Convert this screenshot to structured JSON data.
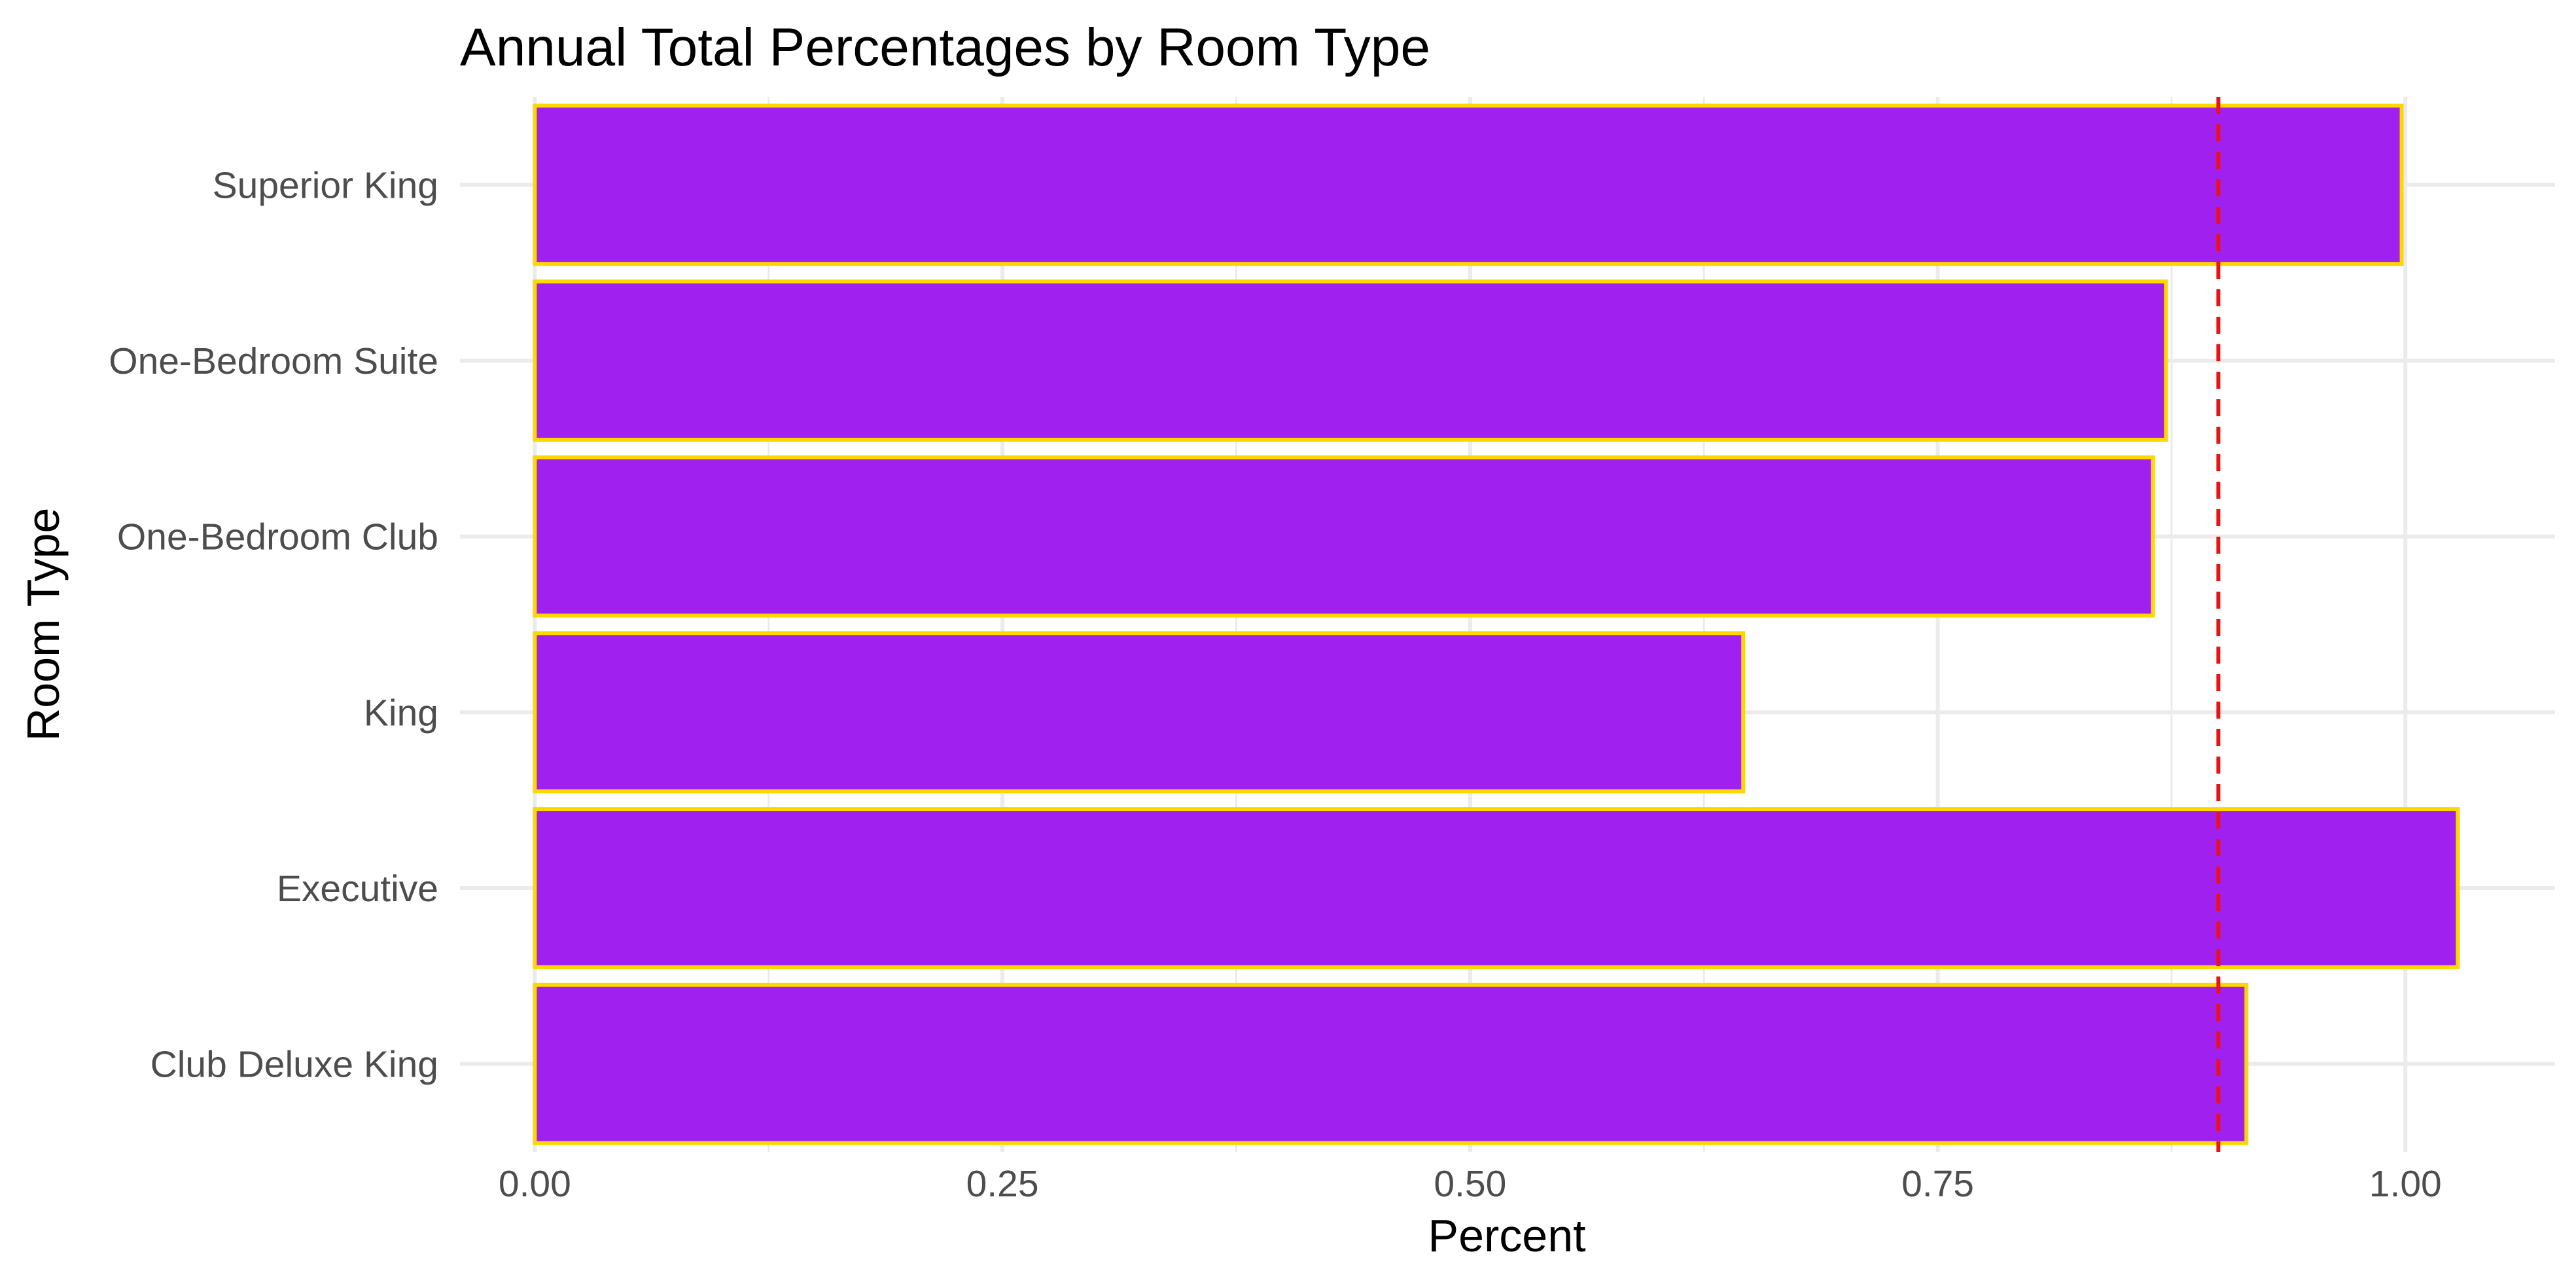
{
  "chart_data": {
    "type": "bar",
    "orientation": "horizontal",
    "title": "Annual Total Percentages by Room Type",
    "xlabel": "Percent",
    "ylabel": "Room Type",
    "categories": [
      "Club Deluxe King",
      "Executive",
      "King",
      "One-Bedroom Club",
      "One-Bedroom Suite",
      "Superior King"
    ],
    "values": [
      0.915,
      1.028,
      0.646,
      0.865,
      0.872,
      0.998
    ],
    "xlim": [
      -0.04,
      1.08
    ],
    "xticks": [
      0,
      0.25,
      0.5,
      0.75,
      1
    ],
    "xtick_labels": [
      "0.00",
      "0.25",
      "0.50",
      "0.75",
      "1.00"
    ],
    "reference_line": {
      "x": 0.9,
      "style": "dashed",
      "color": "#ee1111"
    },
    "grid": true,
    "legend": "none",
    "colors": {
      "bar_fill": "#a020f0",
      "bar_outline": "#ffd700",
      "grid": "#ebebeb",
      "text": "#000000",
      "tick_text": "#4d4d4d"
    }
  }
}
